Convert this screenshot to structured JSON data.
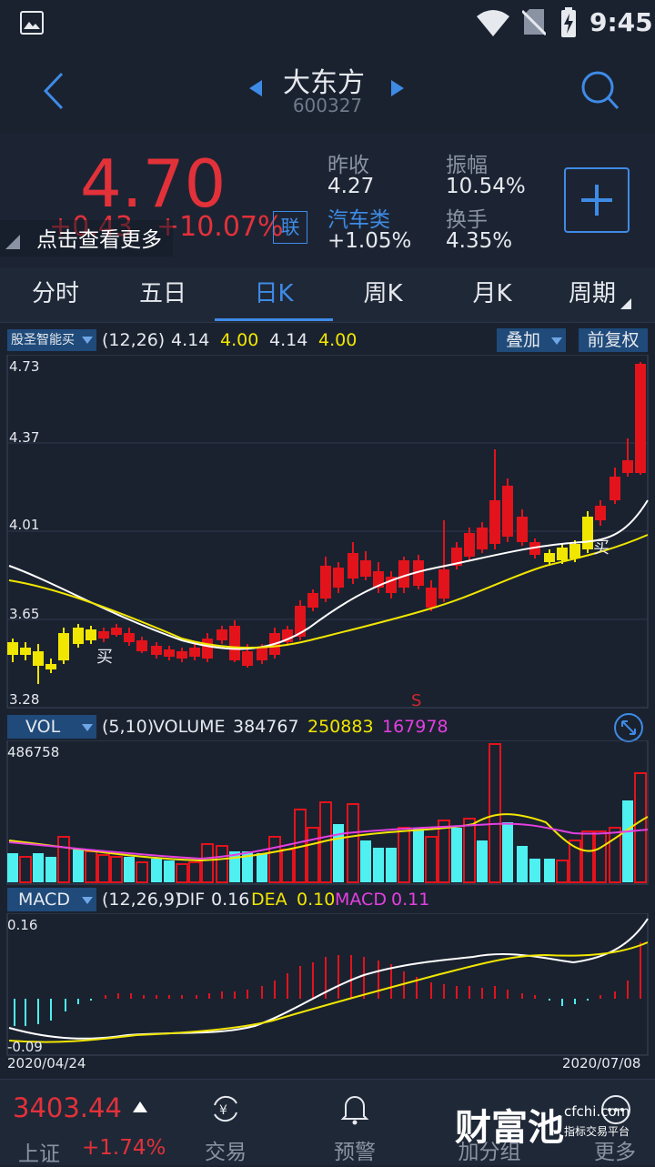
{
  "status": {
    "time": "9:45"
  },
  "header": {
    "name": "大东方",
    "code": "600327"
  },
  "quote": {
    "price": "4.70",
    "change": "+0.43",
    "change_pct": "+10.07%",
    "lian": "联",
    "hint": "点击查看更多",
    "prev_close_label": "昨收",
    "prev_close": "4.27",
    "amplitude_label": "振幅",
    "amplitude": "10.54%",
    "sector_label": "汽车类",
    "sector_pct": "+1.05%",
    "turnover_label": "换手",
    "turnover": "4.35%"
  },
  "tabs": [
    "分时",
    "五日",
    "日K",
    "周K",
    "月K",
    "周期"
  ],
  "active_tab": 2,
  "kline": {
    "indicator": "股圣智能买",
    "params": "(12,26)",
    "v1": "4.14",
    "v2": "4.00",
    "v3": "4.14",
    "v4": "4.00",
    "overlay_btn": "叠加",
    "adjust_btn": "前复权",
    "y_labels": [
      "4.73",
      "4.37",
      "4.01",
      "3.65",
      "3.28"
    ],
    "buy_label": "买",
    "sell_label": "S"
  },
  "volume": {
    "selector": "VOL",
    "params": "(5,10)",
    "name": "VOLUME",
    "v1": "384767",
    "v2": "250883",
    "v3": "167978",
    "max": "486758"
  },
  "macd": {
    "selector": "MACD",
    "params": "(12,26,9)",
    "dif_label": "DIF",
    "dif": "0.16",
    "dea_label": "DEA",
    "dea": "0.10",
    "macd_label": "MACD",
    "macd": "0.11",
    "max": "0.16",
    "min": "-0.09",
    "date_start": "2020/04/24",
    "date_end": "2020/07/08"
  },
  "bottom": {
    "index_value": "3403.44",
    "index_name": "上证",
    "index_pct": "+1.74%",
    "trade": "交易",
    "alert": "预警",
    "add": "加分组",
    "more": "更多",
    "wm_text": "财富池",
    "wm_domain": "cfchi.com",
    "wm_sub": "指标交易平台"
  },
  "colors": {
    "up": "#e3131b",
    "down_yellow": "#f0e600",
    "down_cyan": "#4ef0f0",
    "accent": "#3e8be6"
  }
}
